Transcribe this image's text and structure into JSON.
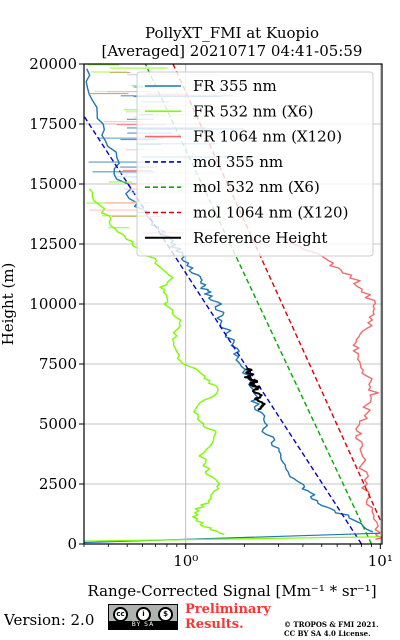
{
  "chart_data": {
    "type": "line",
    "title": "PollyXT_FMI at Kuopio",
    "subtitle": "[Averaged] 20210717 04:41-05:59",
    "xlabel": "Range-Corrected Signal [Mm⁻¹ * sr⁻¹]",
    "ylabel": "Height (m)",
    "xscale": "log",
    "xlim": [
      0.3,
      10.2
    ],
    "ylim": [
      0,
      20000
    ],
    "xticks": [
      {
        "value": 1,
        "label": "10⁰"
      },
      {
        "value": 10,
        "label": "10¹"
      }
    ],
    "yticks": [
      0,
      2500,
      5000,
      7500,
      10000,
      12500,
      15000,
      17500,
      20000
    ],
    "ytick_labels": [
      "0",
      "2500",
      "5000",
      "7500",
      "10000",
      "12500",
      "15000",
      "17500",
      "20000"
    ],
    "grid": true,
    "legend_position": "top-right",
    "series": [
      {
        "name": "FR 355 nm",
        "color": "#1f77b4",
        "style": "solid",
        "x": [
          9.5,
          6.5,
          4.8,
          4.0,
          3.5,
          3.1,
          2.8,
          2.55,
          2.35,
          2.2,
          2.05,
          1.85,
          1.7,
          1.55,
          1.45,
          1.3,
          1.2,
          1.15,
          1.0,
          0.9,
          0.8,
          0.65,
          0.55,
          0.45,
          0.4,
          0.35,
          0.31
        ],
        "y": [
          500,
          1200,
          1800,
          2300,
          2800,
          3400,
          4100,
          4800,
          5600,
          6300,
          7000,
          7800,
          8500,
          9300,
          10000,
          10500,
          10800,
          11200,
          11800,
          12300,
          12800,
          13400,
          14200,
          15400,
          16800,
          18200,
          19800
        ]
      },
      {
        "name": "FR 532 nm (X6)",
        "color": "#7cfc00",
        "style": "solid",
        "x": [
          1.55,
          1.2,
          1.1,
          1.3,
          1.5,
          1.3,
          1.2,
          1.45,
          1.2,
          1.1,
          1.45,
          1.25,
          0.95,
          0.85,
          0.95,
          0.8,
          0.75,
          0.85,
          0.7,
          0.55,
          0.45,
          0.38,
          0.32
        ],
        "y": [
          400,
          800,
          1300,
          1800,
          2400,
          3000,
          3800,
          4600,
          5000,
          5600,
          6400,
          7000,
          7600,
          8400,
          9200,
          10000,
          10600,
          11200,
          11800,
          12400,
          13000,
          13800,
          14800
        ]
      },
      {
        "name": "FR 1064 nm (X120)",
        "color": "#f26b6b",
        "style": "solid",
        "x": [
          10.0,
          9.6,
          8.8,
          8.4,
          8.0,
          7.6,
          7.9,
          8.6,
          9.3,
          8.5,
          7.8,
          7.2,
          8.6,
          9.5,
          8.4,
          7.0,
          5.2,
          4.2,
          3.2
        ],
        "y": [
          200,
          600,
          1500,
          2500,
          3500,
          4400,
          5000,
          5700,
          6300,
          7000,
          7700,
          8400,
          9100,
          9800,
          10500,
          11200,
          11800,
          12300,
          12800
        ]
      },
      {
        "name": "mol 355 nm",
        "color": "#0000cc",
        "style": "dashed",
        "x": [
          8.0,
          0.27
        ],
        "y": [
          0,
          18400
        ]
      },
      {
        "name": "mol 532 nm (X6)",
        "color": "#00aa00",
        "style": "dashed",
        "x": [
          9.0,
          0.62
        ],
        "y": [
          0,
          20000
        ]
      },
      {
        "name": "mol 1064 nm (X120)",
        "color": "#dd0000",
        "style": "dashed",
        "x": [
          10.0,
          0.86
        ],
        "y": [
          1000,
          20000
        ]
      },
      {
        "name": "Reference Height",
        "color": "#000000",
        "style": "solid",
        "x": [
          2.35,
          2.5,
          2.3,
          2.45,
          2.25,
          2.4,
          2.15,
          2.3,
          2.05,
          2.2,
          2.0,
          2.15,
          2.05
        ],
        "y": [
          5600,
          5800,
          6000,
          6200,
          6400,
          6500,
          6650,
          6800,
          6950,
          7050,
          7150,
          7250,
          7300
        ]
      }
    ]
  },
  "footer": {
    "version": "Version: 2.0",
    "cc_icon_labels": [
      "cc",
      "i",
      "$"
    ],
    "cc_strip": "BY  SA",
    "preliminary_line1": "Preliminary",
    "preliminary_line2": "Results.",
    "copyright_line1": "© TROPOS & FMI 2021.",
    "copyright_line2": "CC BY SA 4.0 License."
  }
}
